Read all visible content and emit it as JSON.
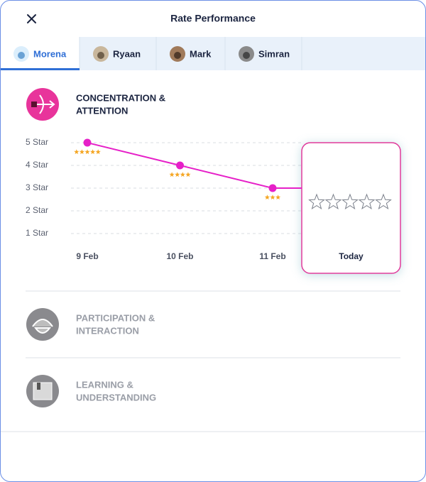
{
  "header": {
    "title": "Rate Performance"
  },
  "tabs": [
    {
      "name": "Morena",
      "active": true
    },
    {
      "name": "Ryaan",
      "active": false
    },
    {
      "name": "Mark",
      "active": false
    },
    {
      "name": "Simran",
      "active": false
    }
  ],
  "sections": [
    {
      "title_lines": [
        "CONCENTRATION &",
        "ATTENTION"
      ],
      "active": true
    },
    {
      "title_lines": [
        "PARTICIPATION &",
        "INTERACTION"
      ],
      "active": false
    },
    {
      "title_lines": [
        "LEARNING &",
        "UNDERSTANDING"
      ],
      "active": false
    }
  ],
  "chart_data": {
    "type": "line",
    "categories": [
      "9 Feb",
      "10 Feb",
      "11 Feb",
      "Today"
    ],
    "values": [
      5,
      4,
      3,
      null
    ],
    "color": "#e620c8",
    "star_color": "#f5a623",
    "ylim": [
      1,
      5
    ],
    "yticks": [
      {
        "value": 1,
        "label": "1 Star"
      },
      {
        "value": 2,
        "label": "2 Star"
      },
      {
        "value": 3,
        "label": "3 Star"
      },
      {
        "value": 4,
        "label": "4 Star"
      },
      {
        "value": 5,
        "label": "5 Star"
      }
    ],
    "grid": true
  }
}
